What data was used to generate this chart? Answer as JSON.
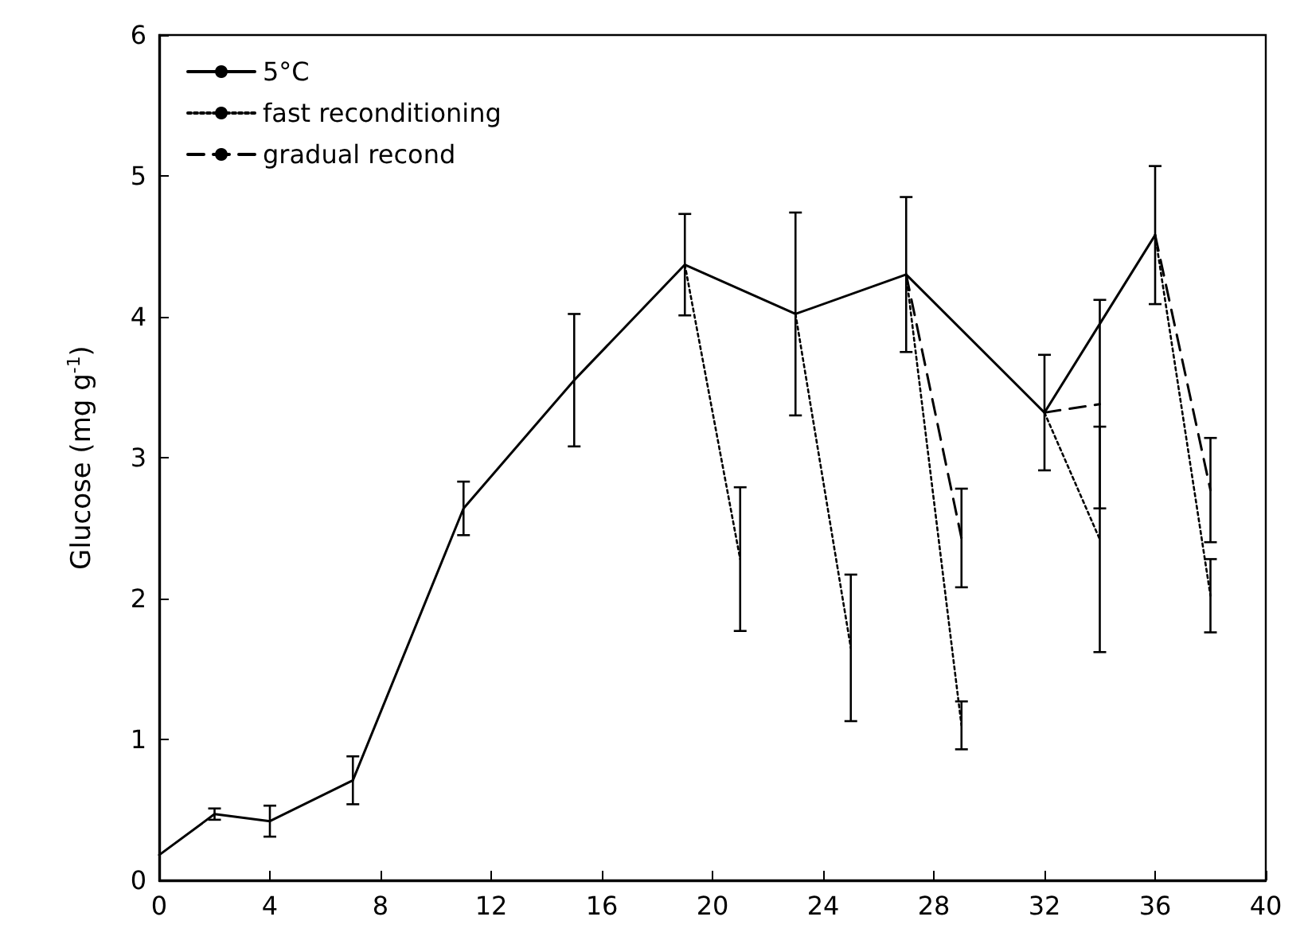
{
  "chart_data": {
    "type": "line",
    "ylabel": "Glucose (mg g$^{-1}$)",
    "xlim": [
      0,
      40
    ],
    "xticks": [
      0,
      4,
      8,
      12,
      16,
      20,
      24,
      28,
      32,
      36,
      40
    ],
    "ylim": [
      0,
      6
    ],
    "yticks": [
      0,
      1,
      2,
      3,
      4,
      5,
      6
    ],
    "grid": false,
    "legend": "top left",
    "marker": "none",
    "series": [
      {
        "name": "5°C",
        "color": "#000000",
        "line_style": "solid",
        "x": [
          0,
          2,
          4,
          7,
          11,
          15,
          19,
          23,
          27,
          32,
          34,
          36
        ],
        "values": [
          0.18,
          0.47,
          0.42,
          0.71,
          2.64,
          3.55,
          4.37,
          4.02,
          4.3,
          3.32,
          3.95,
          4.58
        ],
        "errors": [
          null,
          0.04,
          0.11,
          0.17,
          0.19,
          0.47,
          0.36,
          0.72,
          0.55,
          0.41,
          null,
          0.49
        ]
      },
      {
        "name": "fast reconditioning",
        "color": "#000000",
        "line_style": "dotted",
        "x": [
          19,
          21,
          22,
          23,
          25,
          26,
          27,
          29,
          30,
          32,
          34,
          35,
          36,
          38
        ],
        "values": [
          4.37,
          2.28,
          null,
          4.02,
          1.65,
          null,
          4.3,
          1.1,
          null,
          3.32,
          2.42,
          null,
          4.58,
          2.02
        ],
        "errors": [
          null,
          0.51,
          null,
          null,
          0.52,
          null,
          null,
          0.17,
          null,
          null,
          0.8,
          null,
          null,
          0.26
        ]
      },
      {
        "name": "gradual recond",
        "color": "#000000",
        "line_style": "dashed",
        "x": [
          27,
          29,
          30,
          32,
          34,
          35,
          36,
          38
        ],
        "values": [
          4.3,
          2.43,
          null,
          3.32,
          3.38,
          null,
          4.58,
          2.77
        ],
        "errors": [
          null,
          0.35,
          null,
          null,
          0.74,
          null,
          null,
          0.37
        ]
      }
    ]
  }
}
